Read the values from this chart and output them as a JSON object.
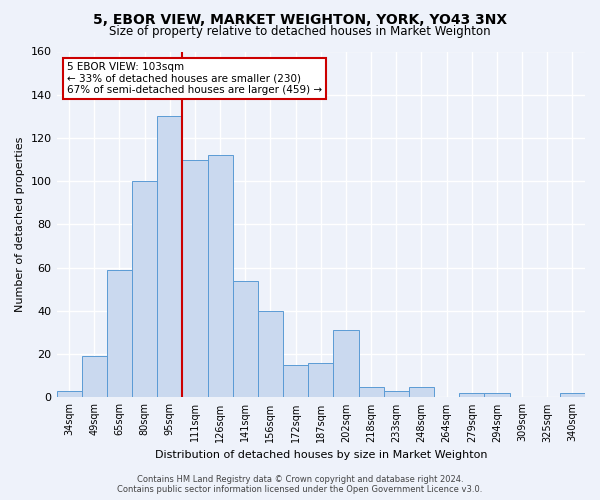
{
  "title": "5, EBOR VIEW, MARKET WEIGHTON, YORK, YO43 3NX",
  "subtitle": "Size of property relative to detached houses in Market Weighton",
  "xlabel": "Distribution of detached houses by size in Market Weighton",
  "ylabel": "Number of detached properties",
  "categories": [
    "34sqm",
    "49sqm",
    "65sqm",
    "80sqm",
    "95sqm",
    "111sqm",
    "126sqm",
    "141sqm",
    "156sqm",
    "172sqm",
    "187sqm",
    "202sqm",
    "218sqm",
    "233sqm",
    "248sqm",
    "264sqm",
    "279sqm",
    "294sqm",
    "309sqm",
    "325sqm",
    "340sqm"
  ],
  "values": [
    3,
    19,
    59,
    100,
    130,
    110,
    112,
    54,
    40,
    15,
    16,
    31,
    5,
    3,
    5,
    0,
    2,
    2,
    0,
    0,
    2
  ],
  "bar_color": "#cad9ef",
  "bar_edge_color": "#5b9bd5",
  "property_label": "5 EBOR VIEW: 103sqm",
  "annotation_line1": "← 33% of detached houses are smaller (230)",
  "annotation_line2": "67% of semi-detached houses are larger (459) →",
  "annotation_box_color": "#ffffff",
  "annotation_box_edge": "#cc0000",
  "vline_x": 4.5,
  "vline_color": "#cc0000",
  "ylim": [
    0,
    160
  ],
  "yticks": [
    0,
    20,
    40,
    60,
    80,
    100,
    120,
    140,
    160
  ],
  "bg_color": "#eef2fa",
  "grid_color": "#ffffff",
  "footer_line1": "Contains HM Land Registry data © Crown copyright and database right 2024.",
  "footer_line2": "Contains public sector information licensed under the Open Government Licence v3.0."
}
